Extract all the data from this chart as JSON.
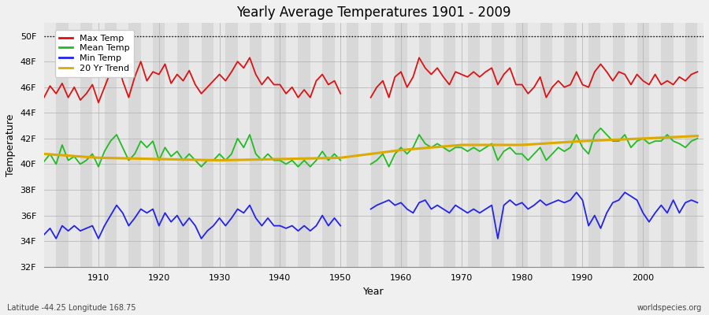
{
  "title": "Yearly Average Temperatures 1901 - 2009",
  "xlabel": "Year",
  "ylabel": "Temperature",
  "bottom_left": "Latitude -44.25 Longitude 168.75",
  "bottom_right": "worldspecies.org",
  "ylim": [
    32,
    51
  ],
  "yticks": [
    32,
    34,
    36,
    38,
    40,
    42,
    44,
    46,
    48,
    50
  ],
  "ytick_labels": [
    "32F",
    "34F",
    "36F",
    "38F",
    "40F",
    "42F",
    "44F",
    "46F",
    "48F",
    "50F"
  ],
  "xticks": [
    1910,
    1920,
    1930,
    1940,
    1950,
    1960,
    1970,
    1980,
    1990,
    2000
  ],
  "xlim": [
    1901,
    2010
  ],
  "dotted_line_y": 50,
  "fig_bg": "#f0f0f0",
  "plot_bg": "#e0e0e0",
  "band_color_a": "#e8e8e8",
  "band_color_b": "#d8d8d8",
  "max_color": "#dd1111",
  "mean_color": "#22bb22",
  "min_color": "#2222ee",
  "trend_color": "#ddaa00",
  "legend_labels": [
    "Max Temp",
    "Mean Temp",
    "Min Temp",
    "20 Yr Trend"
  ],
  "gap_start": 1951,
  "gap_end": 1955,
  "years_max": [
    1901,
    1902,
    1903,
    1904,
    1905,
    1906,
    1907,
    1908,
    1909,
    1910,
    1911,
    1912,
    1913,
    1914,
    1915,
    1916,
    1917,
    1918,
    1919,
    1920,
    1921,
    1922,
    1923,
    1924,
    1925,
    1926,
    1927,
    1928,
    1929,
    1930,
    1931,
    1932,
    1933,
    1934,
    1935,
    1936,
    1937,
    1938,
    1939,
    1940,
    1941,
    1942,
    1943,
    1944,
    1945,
    1946,
    1947,
    1948,
    1949,
    1950,
    1955,
    1956,
    1957,
    1958,
    1959,
    1960,
    1961,
    1962,
    1963,
    1964,
    1965,
    1966,
    1967,
    1968,
    1969,
    1970,
    1971,
    1972,
    1973,
    1974,
    1975,
    1976,
    1977,
    1978,
    1979,
    1980,
    1981,
    1982,
    1983,
    1984,
    1985,
    1986,
    1987,
    1988,
    1989,
    1990,
    1991,
    1992,
    1993,
    1994,
    1995,
    1996,
    1997,
    1998,
    1999,
    2000,
    2001,
    2002,
    2003,
    2004,
    2005,
    2006,
    2007,
    2008,
    2009
  ],
  "max_temps": [
    45.2,
    46.1,
    45.5,
    46.3,
    45.2,
    46.0,
    45.0,
    45.5,
    46.2,
    44.8,
    46.0,
    47.2,
    48.5,
    46.5,
    45.2,
    46.8,
    48.0,
    46.5,
    47.2,
    47.0,
    47.8,
    46.3,
    47.0,
    46.5,
    47.3,
    46.2,
    45.5,
    46.0,
    46.5,
    47.0,
    46.5,
    47.2,
    48.0,
    47.5,
    48.3,
    47.0,
    46.2,
    46.8,
    46.2,
    46.2,
    45.5,
    46.0,
    45.2,
    45.8,
    45.2,
    46.5,
    47.0,
    46.2,
    46.5,
    45.5,
    45.2,
    46.0,
    46.5,
    45.2,
    46.8,
    47.2,
    46.0,
    46.8,
    48.3,
    47.5,
    47.0,
    47.5,
    46.8,
    46.2,
    47.2,
    47.0,
    46.8,
    47.2,
    46.8,
    47.2,
    47.5,
    46.2,
    47.0,
    47.5,
    46.2,
    46.2,
    45.5,
    46.0,
    46.8,
    45.2,
    46.0,
    46.5,
    46.0,
    46.2,
    47.2,
    46.2,
    46.0,
    47.2,
    47.8,
    47.2,
    46.5,
    47.2,
    47.0,
    46.2,
    47.0,
    46.5,
    46.2,
    47.0,
    46.2,
    46.5,
    46.2,
    46.8,
    46.5,
    47.0,
    47.2
  ],
  "years_mean": [
    1901,
    1902,
    1903,
    1904,
    1905,
    1906,
    1907,
    1908,
    1909,
    1910,
    1911,
    1912,
    1913,
    1914,
    1915,
    1916,
    1917,
    1918,
    1919,
    1920,
    1921,
    1922,
    1923,
    1924,
    1925,
    1926,
    1927,
    1928,
    1929,
    1930,
    1931,
    1932,
    1933,
    1934,
    1935,
    1936,
    1937,
    1938,
    1939,
    1940,
    1941,
    1942,
    1943,
    1944,
    1945,
    1946,
    1947,
    1948,
    1949,
    1950,
    1955,
    1956,
    1957,
    1958,
    1959,
    1960,
    1961,
    1962,
    1963,
    1964,
    1965,
    1966,
    1967,
    1968,
    1969,
    1970,
    1971,
    1972,
    1973,
    1974,
    1975,
    1976,
    1977,
    1978,
    1979,
    1980,
    1981,
    1982,
    1983,
    1984,
    1985,
    1986,
    1987,
    1988,
    1989,
    1990,
    1991,
    1992,
    1993,
    1994,
    1995,
    1996,
    1997,
    1998,
    1999,
    2000,
    2001,
    2002,
    2003,
    2004,
    2005,
    2006,
    2007,
    2008,
    2009
  ],
  "mean_temps": [
    40.2,
    40.8,
    40.0,
    41.5,
    40.3,
    40.6,
    40.0,
    40.3,
    40.8,
    39.8,
    41.0,
    41.8,
    42.3,
    41.3,
    40.3,
    40.8,
    41.8,
    41.3,
    41.8,
    40.3,
    41.3,
    40.6,
    41.0,
    40.3,
    40.8,
    40.3,
    39.8,
    40.3,
    40.3,
    40.8,
    40.3,
    40.8,
    42.0,
    41.3,
    42.3,
    40.8,
    40.3,
    40.8,
    40.3,
    40.3,
    40.0,
    40.3,
    39.8,
    40.3,
    39.8,
    40.3,
    41.0,
    40.3,
    40.8,
    40.3,
    40.0,
    40.3,
    40.8,
    39.8,
    40.8,
    41.3,
    40.8,
    41.3,
    42.3,
    41.6,
    41.3,
    41.6,
    41.3,
    41.0,
    41.3,
    41.3,
    41.0,
    41.3,
    41.0,
    41.3,
    41.6,
    40.3,
    41.0,
    41.3,
    40.8,
    40.8,
    40.3,
    40.8,
    41.3,
    40.3,
    40.8,
    41.3,
    41.0,
    41.3,
    42.3,
    41.3,
    40.8,
    42.3,
    42.8,
    42.3,
    41.8,
    41.8,
    42.3,
    41.3,
    41.8,
    42.0,
    41.6,
    41.8,
    41.8,
    42.3,
    41.8,
    41.6,
    41.3,
    41.8,
    42.0
  ],
  "years_min": [
    1901,
    1902,
    1903,
    1904,
    1905,
    1906,
    1907,
    1908,
    1909,
    1910,
    1911,
    1912,
    1913,
    1914,
    1915,
    1916,
    1917,
    1918,
    1919,
    1920,
    1921,
    1922,
    1923,
    1924,
    1925,
    1926,
    1927,
    1928,
    1929,
    1930,
    1931,
    1932,
    1933,
    1934,
    1935,
    1936,
    1937,
    1938,
    1939,
    1940,
    1941,
    1942,
    1943,
    1944,
    1945,
    1946,
    1947,
    1948,
    1949,
    1950,
    1955,
    1956,
    1957,
    1958,
    1959,
    1960,
    1961,
    1962,
    1963,
    1964,
    1965,
    1966,
    1967,
    1968,
    1969,
    1970,
    1971,
    1972,
    1973,
    1974,
    1975,
    1976,
    1977,
    1978,
    1979,
    1980,
    1981,
    1982,
    1983,
    1984,
    1985,
    1986,
    1987,
    1988,
    1989,
    1990,
    1991,
    1992,
    1993,
    1994,
    1995,
    1996,
    1997,
    1998,
    1999,
    2000,
    2001,
    2002,
    2003,
    2004,
    2005,
    2006,
    2007,
    2008,
    2009
  ],
  "min_temps": [
    34.5,
    35.0,
    34.2,
    35.2,
    34.8,
    35.2,
    34.8,
    35.0,
    35.2,
    34.2,
    35.2,
    36.0,
    36.8,
    36.2,
    35.2,
    35.8,
    36.5,
    36.2,
    36.5,
    35.2,
    36.2,
    35.5,
    36.0,
    35.2,
    35.8,
    35.2,
    34.2,
    34.8,
    35.2,
    35.8,
    35.2,
    35.8,
    36.5,
    36.2,
    36.8,
    35.8,
    35.2,
    35.8,
    35.2,
    35.2,
    35.0,
    35.2,
    34.8,
    35.2,
    34.8,
    35.2,
    36.0,
    35.2,
    35.8,
    35.2,
    36.5,
    36.8,
    37.0,
    37.2,
    36.8,
    37.0,
    36.5,
    36.2,
    37.0,
    37.2,
    36.5,
    36.8,
    36.5,
    36.2,
    36.8,
    36.5,
    36.2,
    36.5,
    36.2,
    36.5,
    36.8,
    34.2,
    36.8,
    37.2,
    36.8,
    37.0,
    36.5,
    36.8,
    37.2,
    36.8,
    37.0,
    37.2,
    37.0,
    37.2,
    37.8,
    37.2,
    35.2,
    36.0,
    35.0,
    36.2,
    37.0,
    37.2,
    37.8,
    37.5,
    37.2,
    36.2,
    35.5,
    36.2,
    36.8,
    36.2,
    37.2,
    36.2,
    37.0,
    37.2,
    37.0
  ],
  "years_trend": [
    1901,
    1910,
    1920,
    1930,
    1940,
    1950,
    1955,
    1960,
    1970,
    1980,
    1990,
    2000,
    2009
  ],
  "trend_temps": [
    40.8,
    40.5,
    40.4,
    40.3,
    40.4,
    40.5,
    40.8,
    41.1,
    41.5,
    41.5,
    41.8,
    42.0,
    42.2
  ]
}
